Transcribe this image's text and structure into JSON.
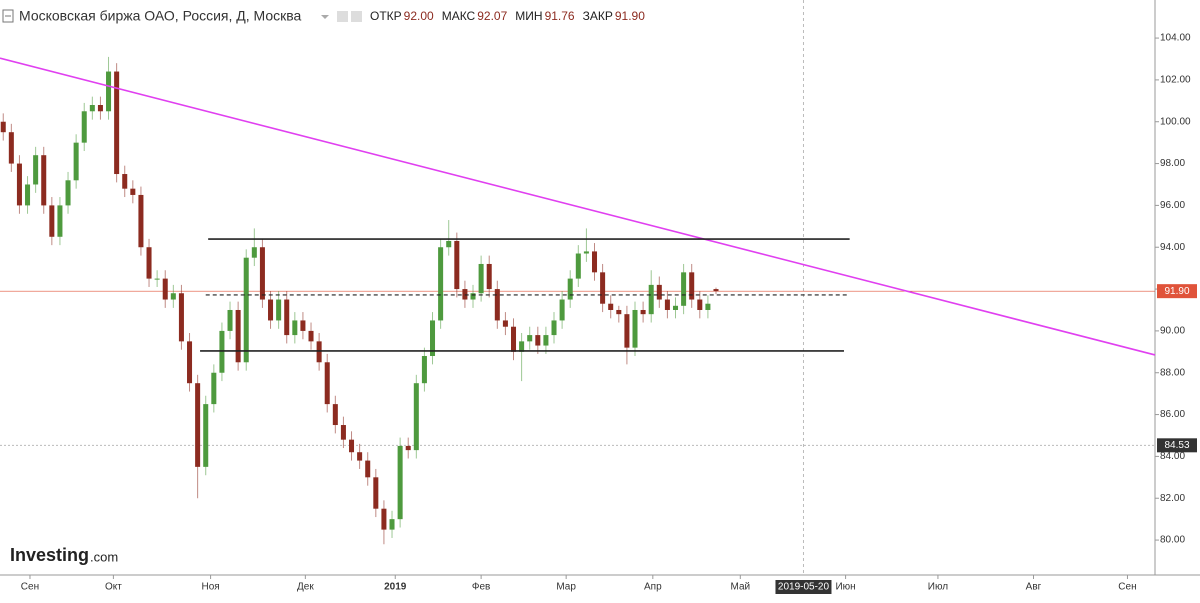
{
  "header": {
    "title": "Московская биржа ОАО, Россия, Д, Москва",
    "fields": [
      {
        "label": "ОТКР",
        "value": "92.00"
      },
      {
        "label": "МАКС",
        "value": "92.07"
      },
      {
        "label": "МИН",
        "value": "91.76"
      },
      {
        "label": "ЗАКР",
        "value": "91.90"
      }
    ]
  },
  "logo": {
    "brand": "Investing",
    "suffix": ".com"
  },
  "chart_data": {
    "type": "candlestick",
    "up_color": "#4e9a3e",
    "down_color": "#8c2b20",
    "open": [
      100,
      99.5,
      98,
      96,
      97,
      98.4,
      96,
      94.5,
      96,
      97.2,
      99,
      100.5,
      100.8,
      100.5,
      102.4,
      97.5,
      96.8,
      96.5,
      94,
      92.5,
      92.5,
      91.5,
      91.8,
      89.5,
      87.5,
      83.5,
      86.5,
      88,
      90,
      91,
      88.5,
      93.5,
      94,
      91.5,
      90.5,
      91.5,
      89.8,
      90.5,
      90,
      89.5,
      88.5,
      86.5,
      85.5,
      84.8,
      84.2,
      83.8,
      83,
      81.5,
      80.5,
      81,
      84.5,
      84.3,
      87.5,
      88.8,
      90.5,
      94,
      94.3,
      92,
      91.5,
      91.8,
      93.2,
      92,
      90.5,
      90.2,
      89,
      89.5,
      89.8,
      89.3,
      89.8,
      90.5,
      91.5,
      92.5,
      93.7,
      93.8,
      92.8,
      91.3,
      91,
      90.8,
      89.2,
      91,
      90.8,
      92.2,
      91.5,
      91,
      91.2,
      92.8,
      91.5,
      91,
      92.0
    ],
    "high": [
      100.4,
      99.9,
      98.4,
      97.4,
      98.8,
      98.8,
      96.4,
      96.4,
      97.6,
      99.4,
      100.9,
      101.2,
      101.2,
      103.1,
      102.8,
      97.9,
      97.2,
      96.9,
      94.4,
      92.9,
      92.9,
      92.2,
      92.2,
      89.9,
      87.9,
      86.9,
      88.4,
      90.4,
      91.4,
      91.4,
      93.9,
      94.9,
      94.4,
      91.9,
      91.9,
      91.9,
      90.9,
      90.9,
      90.4,
      89.9,
      88.9,
      86.9,
      85.9,
      85.2,
      84.6,
      84.2,
      83.4,
      81.9,
      81.4,
      84.9,
      84.9,
      87.9,
      89.2,
      90.9,
      94.4,
      95.3,
      94.7,
      92.4,
      92.2,
      93.6,
      93.6,
      92.4,
      90.9,
      90.6,
      89.9,
      90.2,
      90.2,
      90.2,
      90.9,
      91.9,
      92.9,
      94.1,
      94.9,
      94.2,
      93.2,
      91.7,
      91.2,
      91.2,
      91.4,
      91.4,
      92.9,
      92.6,
      91.9,
      91.6,
      93.2,
      93.2,
      91.9,
      91.7,
      92.07
    ],
    "low": [
      99.1,
      97.6,
      95.6,
      95.6,
      96.6,
      95.6,
      94.1,
      94.1,
      95.6,
      96.8,
      98.6,
      100.1,
      100.1,
      100.1,
      97.1,
      96.4,
      96.1,
      93.6,
      92.1,
      92.1,
      91.1,
      91.1,
      89.1,
      87.1,
      82.0,
      83.1,
      86.1,
      87.6,
      89.6,
      88.1,
      88.1,
      93.1,
      91.1,
      90.1,
      90.1,
      89.4,
      89.4,
      89.6,
      89.1,
      88.1,
      86.1,
      85.1,
      84.4,
      83.8,
      83.4,
      82.6,
      81.1,
      79.8,
      80.1,
      80.6,
      83.9,
      83.9,
      87.1,
      88.4,
      90.1,
      93.6,
      91.6,
      91.1,
      91.1,
      91.4,
      91.6,
      90.1,
      89.8,
      88.6,
      87.6,
      89.1,
      88.9,
      88.9,
      89.4,
      90.1,
      91.1,
      92.1,
      93.3,
      92.4,
      90.9,
      90.6,
      90.4,
      88.4,
      88.8,
      90.4,
      90.4,
      91.1,
      90.6,
      90.6,
      90.8,
      91.1,
      90.6,
      90.6,
      91.76
    ],
    "close": [
      99.5,
      98,
      96,
      97,
      98.4,
      96,
      94.5,
      96,
      97.2,
      99,
      100.5,
      100.8,
      100.5,
      102.4,
      97.5,
      96.8,
      96.5,
      94,
      92.5,
      92.5,
      91.5,
      91.8,
      89.5,
      87.5,
      83.5,
      86.5,
      88,
      90,
      91,
      88.5,
      93.5,
      94,
      91.5,
      90.5,
      91.5,
      89.8,
      90.5,
      90,
      89.5,
      88.5,
      86.5,
      85.5,
      84.8,
      84.2,
      83.8,
      83,
      81.5,
      80.5,
      81,
      84.5,
      84.3,
      87.5,
      88.8,
      90.5,
      94,
      94.3,
      92,
      91.5,
      91.8,
      93.2,
      92,
      90.5,
      90.2,
      89,
      89.5,
      89.8,
      89.3,
      89.8,
      90.5,
      91.5,
      92.5,
      93.7,
      93.8,
      92.8,
      91.3,
      91,
      90.8,
      89.2,
      91,
      90.8,
      92.2,
      91.5,
      91,
      91.2,
      92.8,
      91.5,
      91,
      91.3,
      91.9
    ],
    "xlim": [
      -0.4,
      142.2
    ],
    "xticks": [
      {
        "value": 3.3,
        "label": "Сен"
      },
      {
        "value": 13.6,
        "label": "Окт"
      },
      {
        "value": 25.6,
        "label": "Ноя"
      },
      {
        "value": 37.3,
        "label": "Дек"
      },
      {
        "value": 48.4,
        "label": "2019"
      },
      {
        "value": 59,
        "label": "Фев"
      },
      {
        "value": 69.5,
        "label": "Мар"
      },
      {
        "value": 80.2,
        "label": "Апр"
      },
      {
        "value": 91,
        "label": "Май"
      },
      {
        "value": 104,
        "label": "Июн"
      },
      {
        "value": 115.4,
        "label": "Июл"
      },
      {
        "value": 127.2,
        "label": "Авг"
      },
      {
        "value": 138.8,
        "label": "Сен"
      }
    ],
    "ylim": [
      78.33,
      105.82
    ],
    "yticks": [
      {
        "value": 80,
        "label": "80.00"
      },
      {
        "value": 82,
        "label": "82.00"
      },
      {
        "value": 84,
        "label": "84.00"
      },
      {
        "value": 86,
        "label": "86.00"
      },
      {
        "value": 88,
        "label": "88.00"
      },
      {
        "value": 90,
        "label": "90.00"
      },
      {
        "value": 92,
        "label": "92.00"
      },
      {
        "value": 94,
        "label": "94.00"
      },
      {
        "value": 96,
        "label": "96.00"
      },
      {
        "value": 98,
        "label": "98.00"
      },
      {
        "value": 100,
        "label": "100.00"
      },
      {
        "value": 102,
        "label": "102.00"
      },
      {
        "value": 104,
        "label": "104.00"
      }
    ],
    "lines": [
      {
        "x": [
          -0.4,
          142.2
        ],
        "y": [
          103.04,
          88.85
        ],
        "color": "#e040f0",
        "dash": false
      },
      {
        "x": [
          25.3,
          104.5
        ],
        "y": [
          94.39,
          94.39
        ],
        "color": "#222222",
        "dash": false
      },
      {
        "x": [
          24.3,
          103.8
        ],
        "y": [
          89.04,
          89.04
        ],
        "color": "#222222",
        "dash": false
      },
      {
        "x": [
          25,
          104.2
        ],
        "y": [
          91.72,
          91.72
        ],
        "color": "#222222",
        "dash": true
      }
    ],
    "price_line": {
      "value": 91.9,
      "label": "91.90",
      "color": "#e0533a"
    },
    "crosshair": {
      "x": {
        "value": 98.8,
        "label": "2019-05-20"
      },
      "y": {
        "value": 84.53,
        "label": "84.53"
      }
    }
  }
}
